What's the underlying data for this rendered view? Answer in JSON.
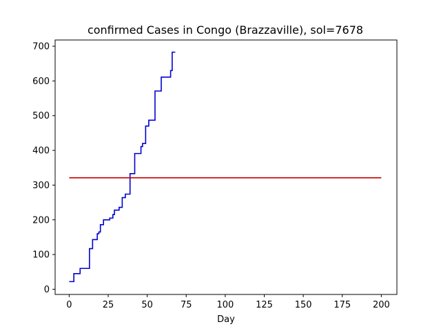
{
  "chart_data": {
    "type": "line",
    "title": "confirmed Cases in Congo (Brazzaville), sol=7678",
    "xlabel": "Day",
    "ylabel": "",
    "xlim": [
      -9,
      210
    ],
    "ylim": [
      -15,
      718
    ],
    "xticks": [
      0,
      25,
      50,
      75,
      100,
      125,
      150,
      175,
      200
    ],
    "yticks": [
      0,
      100,
      200,
      300,
      400,
      500,
      600,
      700
    ],
    "grid": false,
    "series": [
      {
        "color": "#0000cc",
        "step": true,
        "x": [
          0,
          1,
          2,
          3,
          4,
          5,
          6,
          7,
          8,
          9,
          10,
          11,
          12,
          13,
          14,
          15,
          16,
          17,
          18,
          19,
          20,
          21,
          22,
          23,
          24,
          25,
          26,
          27,
          28,
          29,
          30,
          31,
          32,
          33,
          34,
          35,
          36,
          37,
          38,
          39,
          40,
          41,
          42,
          43,
          44,
          45,
          46,
          47,
          48,
          49,
          50,
          51,
          52,
          53,
          54,
          55,
          56,
          57,
          58,
          59,
          60,
          61,
          62,
          63,
          64,
          65,
          66,
          67,
          68
        ],
        "y": [
          22,
          22,
          22,
          45,
          45,
          45,
          45,
          60,
          60,
          60,
          60,
          60,
          60,
          117,
          117,
          143,
          143,
          143,
          160,
          165,
          186,
          186,
          200,
          200,
          200,
          200,
          205,
          205,
          215,
          228,
          228,
          228,
          236,
          236,
          264,
          264,
          274,
          274,
          274,
          333,
          333,
          333,
          391,
          391,
          391,
          391,
          411,
          420,
          420,
          470,
          470,
          487,
          487,
          487,
          487,
          571,
          571,
          571,
          571,
          611,
          611,
          611,
          611,
          611,
          611,
          630,
          683,
          683,
          683
        ]
      },
      {
        "color": "#cc0000",
        "step": false,
        "x": [
          0,
          200
        ],
        "y": [
          321,
          321
        ]
      }
    ]
  }
}
